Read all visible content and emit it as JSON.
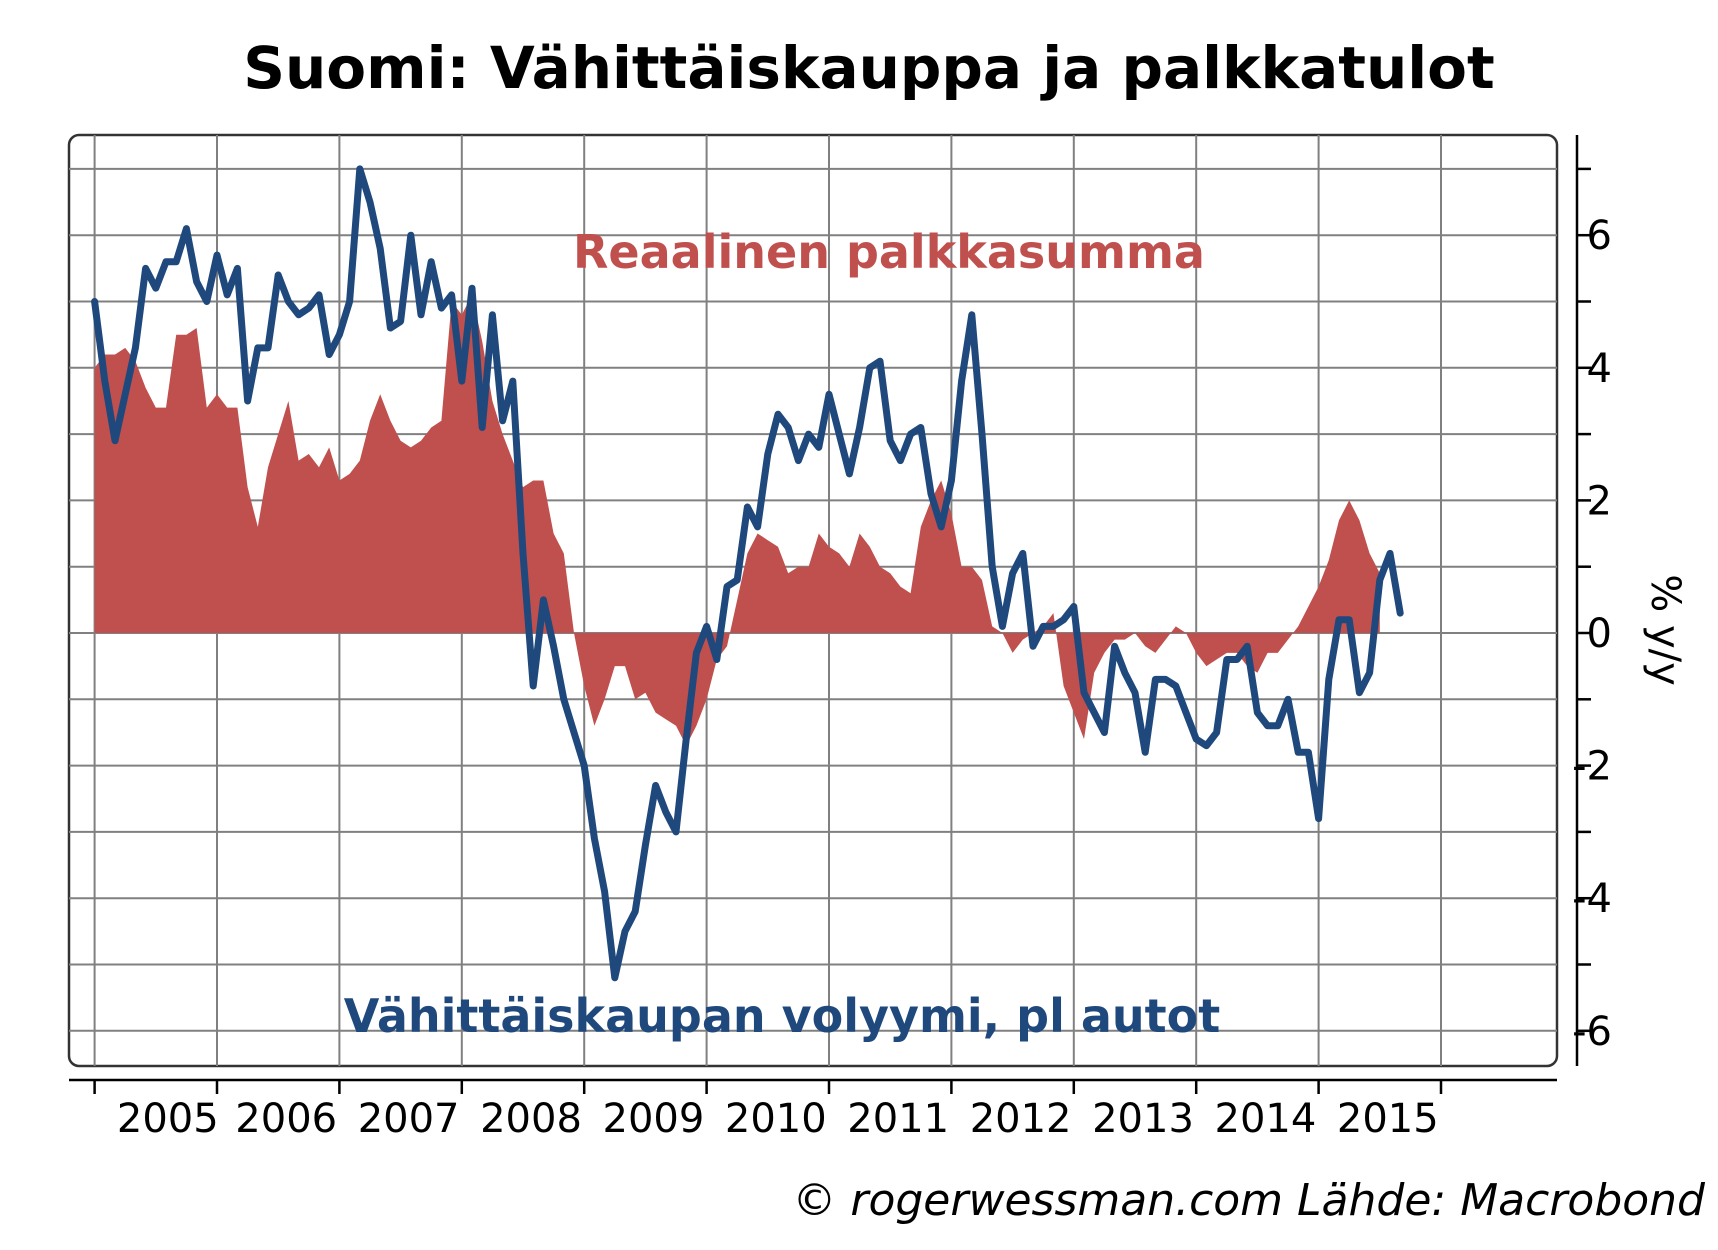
{
  "chart_data": {
    "type": "line",
    "title": "Suomi: Vähittäiskauppa ja palkkatulot",
    "ylabel": "% y/y",
    "xlabel": "",
    "ylim": [
      -6.5,
      7
    ],
    "yticks": [
      -6,
      -4,
      -2,
      0,
      2,
      4,
      6
    ],
    "xticks": [
      "2005",
      "2006",
      "2007",
      "2008",
      "2009",
      "2010",
      "2011",
      "2012",
      "2013",
      "2014",
      "2015"
    ],
    "grid": true,
    "legend": "none",
    "credit": "© rogerwessman.com Lähde: Macrobond",
    "x_start": "2004-01",
    "series": [
      {
        "name": "Reaalinen palkkasumma",
        "kind": "area",
        "color": "#c0504d",
        "values": [
          4.0,
          4.2,
          4.2,
          4.3,
          4.1,
          3.7,
          3.4,
          3.4,
          4.5,
          4.5,
          4.6,
          3.4,
          3.6,
          3.4,
          3.4,
          2.2,
          1.6,
          2.5,
          3.0,
          3.5,
          2.6,
          2.7,
          2.5,
          2.8,
          2.3,
          2.4,
          2.6,
          3.2,
          3.6,
          3.2,
          2.9,
          2.8,
          2.9,
          3.1,
          3.2,
          5.0,
          4.8,
          5.1,
          4.4,
          3.5,
          3.0,
          2.6,
          2.2,
          2.3,
          2.3,
          1.5,
          1.2,
          0.0,
          -0.8,
          -1.4,
          -1.0,
          -0.5,
          -0.5,
          -1.0,
          -0.9,
          -1.2,
          -1.3,
          -1.4,
          -1.7,
          -1.4,
          -1.0,
          -0.4,
          -0.2,
          0.5,
          1.2,
          1.5,
          1.4,
          1.3,
          0.9,
          1.0,
          1.0,
          1.5,
          1.3,
          1.2,
          1.0,
          1.5,
          1.3,
          1.0,
          0.9,
          0.7,
          0.6,
          1.6,
          2.0,
          2.3,
          1.8,
          1.0,
          1.0,
          0.8,
          0.1,
          0.0,
          -0.3,
          -0.1,
          0.0,
          0.1,
          0.3,
          -0.8,
          -1.2,
          -1.6,
          -0.6,
          -0.3,
          -0.1,
          -0.1,
          0.0,
          -0.2,
          -0.3,
          -0.1,
          0.1,
          0.0,
          -0.3,
          -0.5,
          -0.4,
          -0.3,
          -0.3,
          -0.5,
          -0.6,
          -0.3,
          -0.3,
          -0.1,
          0.1,
          0.4,
          0.7,
          1.1,
          1.7,
          2.0,
          1.7,
          1.2,
          0.9
        ]
      },
      {
        "name": "Vähittäiskaupan volyymi, pl autot",
        "kind": "line",
        "color": "#1f497d",
        "values": [
          5.0,
          3.8,
          2.9,
          3.6,
          4.3,
          5.5,
          5.2,
          5.6,
          5.6,
          6.1,
          5.3,
          5.0,
          5.7,
          5.1,
          5.5,
          3.5,
          4.3,
          4.3,
          5.4,
          5.0,
          4.8,
          4.9,
          5.1,
          4.2,
          4.5,
          5.0,
          7.0,
          6.5,
          5.8,
          4.6,
          4.7,
          6.0,
          4.8,
          5.6,
          4.9,
          5.1,
          3.8,
          5.2,
          3.1,
          4.8,
          3.2,
          3.8,
          1.2,
          -0.8,
          0.5,
          -0.2,
          -1.0,
          -1.5,
          -2.0,
          -3.1,
          -3.9,
          -5.2,
          -4.5,
          -4.2,
          -3.2,
          -2.3,
          -2.7,
          -3.0,
          -1.6,
          -0.3,
          0.1,
          -0.4,
          0.7,
          0.8,
          1.9,
          1.6,
          2.7,
          3.3,
          3.1,
          2.6,
          3.0,
          2.8,
          3.6,
          3.0,
          2.4,
          3.1,
          4.0,
          4.1,
          2.9,
          2.6,
          3.0,
          3.1,
          2.1,
          1.6,
          2.3,
          3.8,
          4.8,
          3.0,
          1.0,
          0.1,
          0.9,
          1.2,
          -0.2,
          0.1,
          0.1,
          0.2,
          0.4,
          -0.9,
          -1.2,
          -1.5,
          -0.2,
          -0.6,
          -0.9,
          -1.8,
          -0.7,
          -0.7,
          -0.8,
          -1.2,
          -1.6,
          -1.7,
          -1.5,
          -0.4,
          -0.4,
          -0.2,
          -1.2,
          -1.4,
          -1.4,
          -1.0,
          -1.8,
          -1.8,
          -2.8,
          -0.7,
          0.2,
          0.2,
          -0.9,
          -0.6,
          0.8,
          1.2,
          0.3
        ]
      }
    ],
    "annotations": [
      {
        "text": "Reaalinen palkkasumma",
        "color": "#c0504d"
      },
      {
        "text": "Vähittäiskaupan volyymi, pl autot",
        "color": "#1f497d"
      }
    ]
  }
}
